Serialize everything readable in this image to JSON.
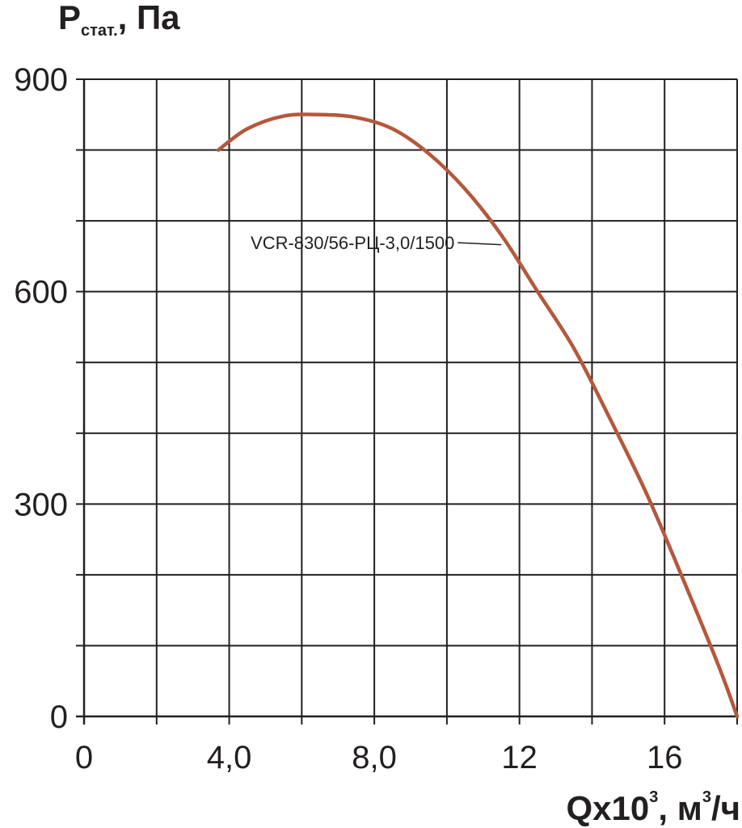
{
  "chart_data": {
    "type": "line",
    "ylabel_main": "P",
    "ylabel_sub": "стат.",
    "ylabel_unit": ", Па",
    "xlabel_main": "Qx10",
    "xlabel_sup1": "3",
    "xlabel_mid": ", м",
    "xlabel_sup2": "3",
    "xlabel_end": "/ч",
    "xlim": [
      0,
      18
    ],
    "ylim": [
      0,
      900
    ],
    "x_ticks": [
      {
        "value": 0,
        "label": "0"
      },
      {
        "value": 4,
        "label": "4,0"
      },
      {
        "value": 8,
        "label": "8,0"
      },
      {
        "value": 12,
        "label": "12"
      },
      {
        "value": 16,
        "label": "16"
      }
    ],
    "y_ticks": [
      {
        "value": 0,
        "label": "0"
      },
      {
        "value": 300,
        "label": "300"
      },
      {
        "value": 600,
        "label": "600"
      },
      {
        "value": 900,
        "label": "900"
      }
    ],
    "grid": true,
    "grid_x_step": 2,
    "grid_y_step": 100,
    "series": [
      {
        "name": "VCR-830/56-РЦ-3,0/1500",
        "color": "#b4583c",
        "x": [
          3.7,
          4.5,
          5.5,
          6.5,
          7.5,
          8.5,
          9.5,
          10.5,
          11.5,
          12.5,
          13.5,
          14.5,
          15.5,
          16.5,
          17.5,
          18.0
        ],
        "y": [
          800,
          830,
          848,
          850,
          846,
          830,
          795,
          745,
          680,
          600,
          520,
          420,
          315,
          195,
          70,
          0
        ]
      }
    ],
    "annotation": {
      "text": "VCR-830/56-РЦ-3,0/1500",
      "x": 7.4,
      "y": 660,
      "pointer_to": [
        11.5,
        680
      ]
    }
  }
}
